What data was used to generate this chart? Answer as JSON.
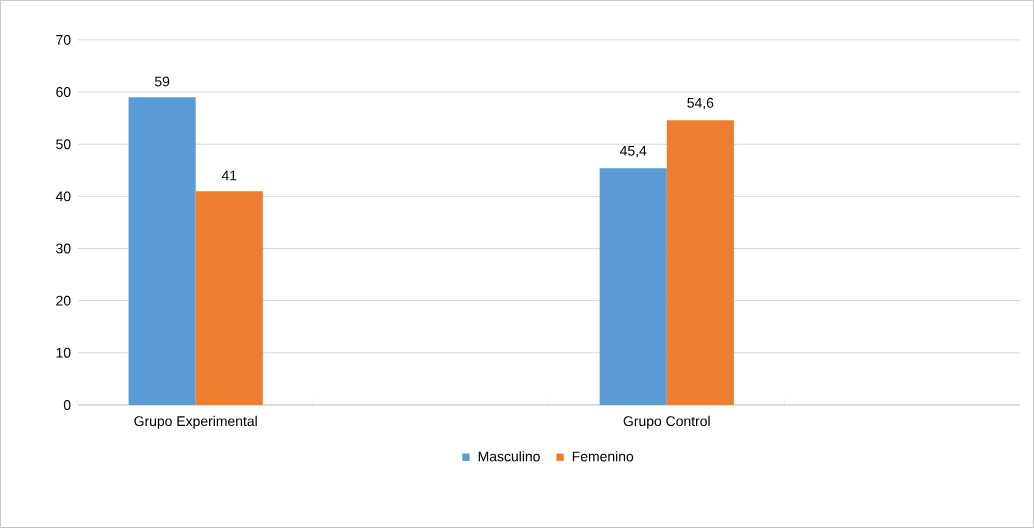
{
  "chart_data": {
    "type": "bar",
    "categories": [
      "Grupo Experimental",
      null,
      "Grupo Control",
      null
    ],
    "series": [
      {
        "name": "Masculino",
        "color": "#5b9bd5",
        "values": [
          59,
          null,
          45.4,
          null
        ],
        "value_labels": [
          "59",
          null,
          "45,4",
          null
        ]
      },
      {
        "name": "Femenino",
        "color": "#ed7d31",
        "values": [
          41,
          null,
          54.6,
          null
        ],
        "value_labels": [
          "41",
          null,
          "54,6",
          null
        ]
      }
    ],
    "ylim": [
      0,
      70
    ],
    "yticks": [
      0,
      10,
      20,
      30,
      40,
      50,
      60,
      70
    ],
    "grid": "y",
    "legend": "bottom"
  }
}
